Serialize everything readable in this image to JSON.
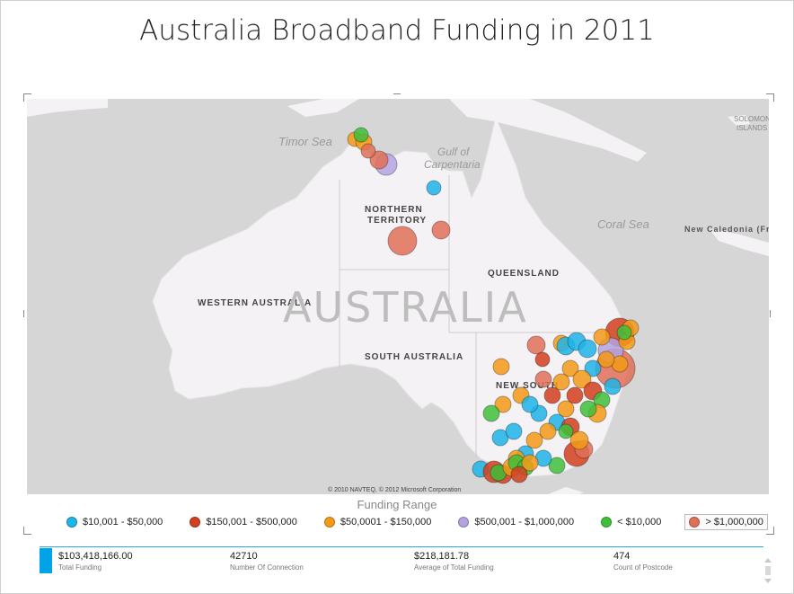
{
  "title": "Australia Broadband Funding in 2011",
  "map": {
    "labels": {
      "timor_sea": "Timor Sea",
      "gulf": "Gulf of",
      "gulf2": "Carpentaria",
      "coral_sea": "Coral Sea",
      "new_caledonia": "New Caledonia (Fr",
      "solomon1": "SOLOMON",
      "solomon2": "ISLANDS",
      "northern1": "Northern",
      "northern2": "Territory",
      "queensland": "Queensland",
      "western_australia": "Western Australia",
      "south_australia": "South Australia",
      "new_south": "New South",
      "australia": "AUSTRALIA"
    },
    "copyright": "© 2010 NAVTEQ, © 2012 Microsoft Corporation",
    "colors": {
      "land": "#f4f2f4",
      "water": "#d6d6d6",
      "blue": "#1fb4e8",
      "red": "#d1401f",
      "orange": "#f39a16",
      "purple": "#b4a3e0",
      "green": "#3ec03b",
      "salmon": "#e07057"
    }
  },
  "legend": {
    "title": "Funding Range",
    "items": [
      {
        "label": "$10,001 - $50,000",
        "color": "#1fb4e8"
      },
      {
        "label": "$150,001 - $500,000",
        "color": "#d1401f"
      },
      {
        "label": "$50,0001 - $150,000",
        "color": "#f39a16"
      },
      {
        "label": "$500,001 - $1,000,000",
        "color": "#b4a3e0"
      },
      {
        "label": "< $10,000",
        "color": "#3ec03b"
      },
      {
        "label": "> $1,000,000",
        "color": "#e07057"
      }
    ]
  },
  "cards": [
    {
      "value": "$103,418,166.00",
      "label": "Total Funding"
    },
    {
      "value": "42710",
      "label": "Number Of Connection"
    },
    {
      "value": "$218,181.78",
      "label": "Average of Total Funding"
    },
    {
      "value": "474",
      "label": "Count of Postcode"
    }
  ]
}
